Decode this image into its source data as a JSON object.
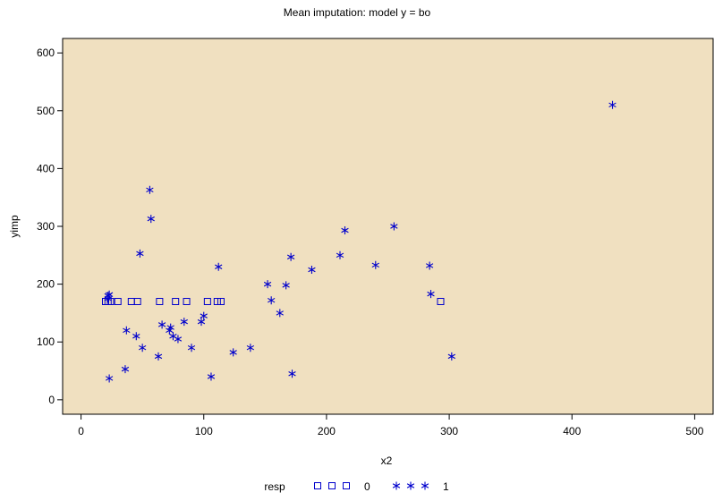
{
  "chart_data": {
    "type": "scatter",
    "title": "Mean imputation: model y = bo",
    "xlabel": "x2",
    "ylabel": "yimp",
    "xlim": [
      -15,
      515
    ],
    "ylim": [
      -25,
      625
    ],
    "xticks": [
      0,
      100,
      200,
      300,
      400,
      500
    ],
    "yticks": [
      0,
      100,
      200,
      300,
      400,
      500,
      600
    ],
    "grid": false,
    "plot_background": "#f0e0c0",
    "marker_color": "#0000cc",
    "legend": {
      "title": "resp",
      "placement": "bottom",
      "entries": [
        {
          "label": "0",
          "marker": "square"
        },
        {
          "label": "1",
          "marker": "asterisk"
        }
      ]
    },
    "series": [
      {
        "name": "0",
        "marker": "square",
        "x": [
          20,
          22,
          24,
          30,
          41,
          46,
          64,
          77,
          86,
          103,
          111,
          114,
          293
        ],
        "y": [
          170,
          170,
          170,
          170,
          170,
          170,
          170,
          170,
          170,
          170,
          170,
          170,
          170
        ]
      },
      {
        "name": "1",
        "marker": "asterisk",
        "x": [
          22,
          22,
          23,
          23,
          36,
          37,
          45,
          48,
          50,
          56,
          57,
          63,
          66,
          72,
          73,
          75,
          79,
          84,
          90,
          98,
          100,
          106,
          112,
          124,
          138,
          152,
          155,
          162,
          167,
          171,
          172,
          188,
          211,
          215,
          240,
          255,
          284,
          285,
          302,
          433
        ],
        "y": [
          180,
          175,
          37,
          182,
          53,
          120,
          110,
          253,
          90,
          363,
          313,
          75,
          130,
          120,
          125,
          110,
          105,
          135,
          90,
          135,
          145,
          40,
          230,
          82,
          90,
          200,
          172,
          150,
          198,
          247,
          45,
          225,
          250,
          293,
          233,
          300,
          232,
          183,
          75,
          510
        ]
      }
    ]
  }
}
